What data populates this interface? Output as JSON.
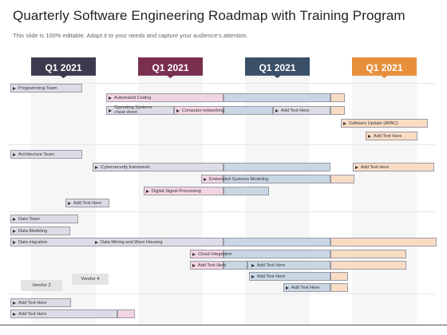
{
  "title": "Quarterly Software Engineering Roadmap with Training Program",
  "subtitle": "This slide is 100% editable. Adapt it to your needs and capture your audience’s attention.",
  "quarters": [
    {
      "label": "Q1 2021",
      "color": "#3c3a4e"
    },
    {
      "label": "Q1 2021",
      "color": "#7a2f4f"
    },
    {
      "label": "Q1 2021",
      "color": "#3a5068"
    },
    {
      "label": "Q1 2021",
      "color": "#e88f3c"
    }
  ],
  "bar_colors": {
    "gray": "#dcdce6",
    "pink": "#f2d5e2",
    "blue": "#c9d7e4",
    "orange": "#f9dcc4"
  },
  "tasks": [
    "Programming  Team",
    "Automated Coding",
    "Operating Systems cheat sheet",
    "Computer networking",
    "Add Text Here",
    "Software Update (APAC)",
    "Add Text Here",
    "Architecture Team",
    "Cybersecurity framework",
    "Add Text Here",
    "Embedded Systems Modeling",
    "Digital Signal Processing",
    "Add Text Here",
    "Data Team",
    "Data Modeling",
    "Data migration",
    "Data Mining and Ware Housing",
    "Cloud Integration",
    "Add Text Here",
    "Add Text Here",
    "Add Text Here",
    "Add Text Here",
    "Add Text Here",
    "Add Text Here"
  ],
  "vendors": [
    "Vendor 2",
    "Vendor 4"
  ]
}
